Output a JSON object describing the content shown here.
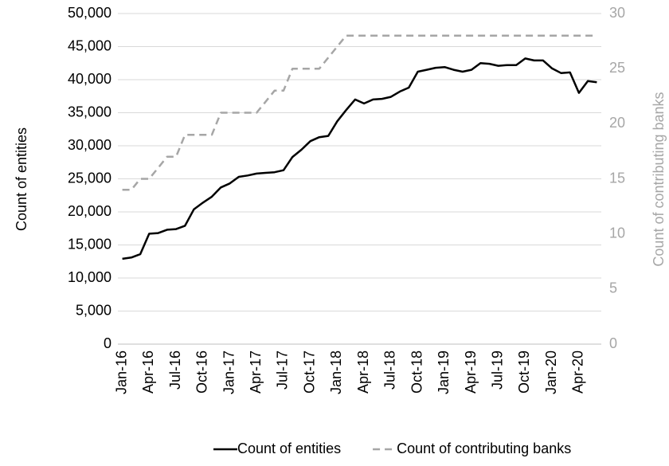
{
  "chart_data": {
    "type": "line",
    "y_label": "Count of entities",
    "y2_label": "Count of contributing banks",
    "categories": [
      "Jan-16",
      null,
      null,
      "Apr-16",
      null,
      null,
      "Jul-16",
      null,
      null,
      "Oct-16",
      null,
      null,
      "Jan-17",
      null,
      null,
      "Apr-17",
      null,
      null,
      "Jul-17",
      null,
      null,
      "Oct-17",
      null,
      null,
      "Jan-18",
      null,
      null,
      "Apr-18",
      null,
      null,
      "Jul-18",
      null,
      null,
      "Oct-18",
      null,
      null,
      "Jan-19",
      null,
      null,
      "Apr-19",
      null,
      null,
      "Jul-19",
      null,
      null,
      "Oct-19",
      null,
      null,
      "Jan-20",
      null,
      null,
      "Apr-20",
      null,
      null
    ],
    "series": [
      {
        "name": "Count of entities",
        "color": "#000000",
        "dash": false,
        "values": [
          12900,
          13100,
          13600,
          16700,
          16800,
          17300,
          17400,
          17900,
          20400,
          21400,
          22300,
          23700,
          24300,
          25300,
          25500,
          25800,
          25900,
          26000,
          26300,
          28300,
          29400,
          30700,
          31300,
          31500,
          33700,
          35400,
          37000,
          36400,
          37000,
          37100,
          37400,
          38200,
          38800,
          41200,
          41500,
          41800,
          41900,
          41500,
          41200,
          41500,
          42500,
          42400,
          42100,
          42200,
          42200,
          43200,
          42900,
          42900,
          41700,
          41000,
          41100,
          38000,
          39800,
          39600
        ]
      },
      {
        "name": "Count of contributing banks",
        "color": "#a6a6a6",
        "dash": true,
        "axis": "y2",
        "values": [
          14,
          14,
          15,
          15,
          16,
          17,
          17,
          19,
          19,
          19,
          19,
          21,
          21,
          21,
          21,
          21,
          22,
          23,
          23,
          25,
          25,
          25,
          25,
          26,
          27,
          28,
          28,
          28,
          28,
          28,
          28,
          28,
          28,
          28,
          28,
          28,
          28,
          28,
          28,
          28,
          28,
          28,
          28,
          28,
          28,
          28,
          28,
          28,
          28,
          28,
          28,
          28,
          28,
          28
        ]
      }
    ],
    "ylim": [
      0,
      50000
    ],
    "yticks": [
      0,
      {
        "value": 5000,
        "label": "5,000"
      },
      {
        "value": 10000,
        "label": "10,000"
      },
      {
        "value": 15000,
        "label": "15,000"
      },
      {
        "value": 20000,
        "label": "20,000"
      },
      {
        "value": 25000,
        "label": "25,000"
      },
      {
        "value": 30000,
        "label": "30,000"
      },
      {
        "value": 35000,
        "label": "35,000"
      },
      {
        "value": 40000,
        "label": "40,000"
      },
      {
        "value": 45000,
        "label": "45,000"
      },
      {
        "value": 50000,
        "label": "50,000"
      }
    ],
    "y2lim": [
      0,
      30
    ],
    "y2ticks": [
      0,
      5,
      10,
      15,
      20,
      25,
      30
    ],
    "grid": true,
    "legend": "bottom"
  }
}
